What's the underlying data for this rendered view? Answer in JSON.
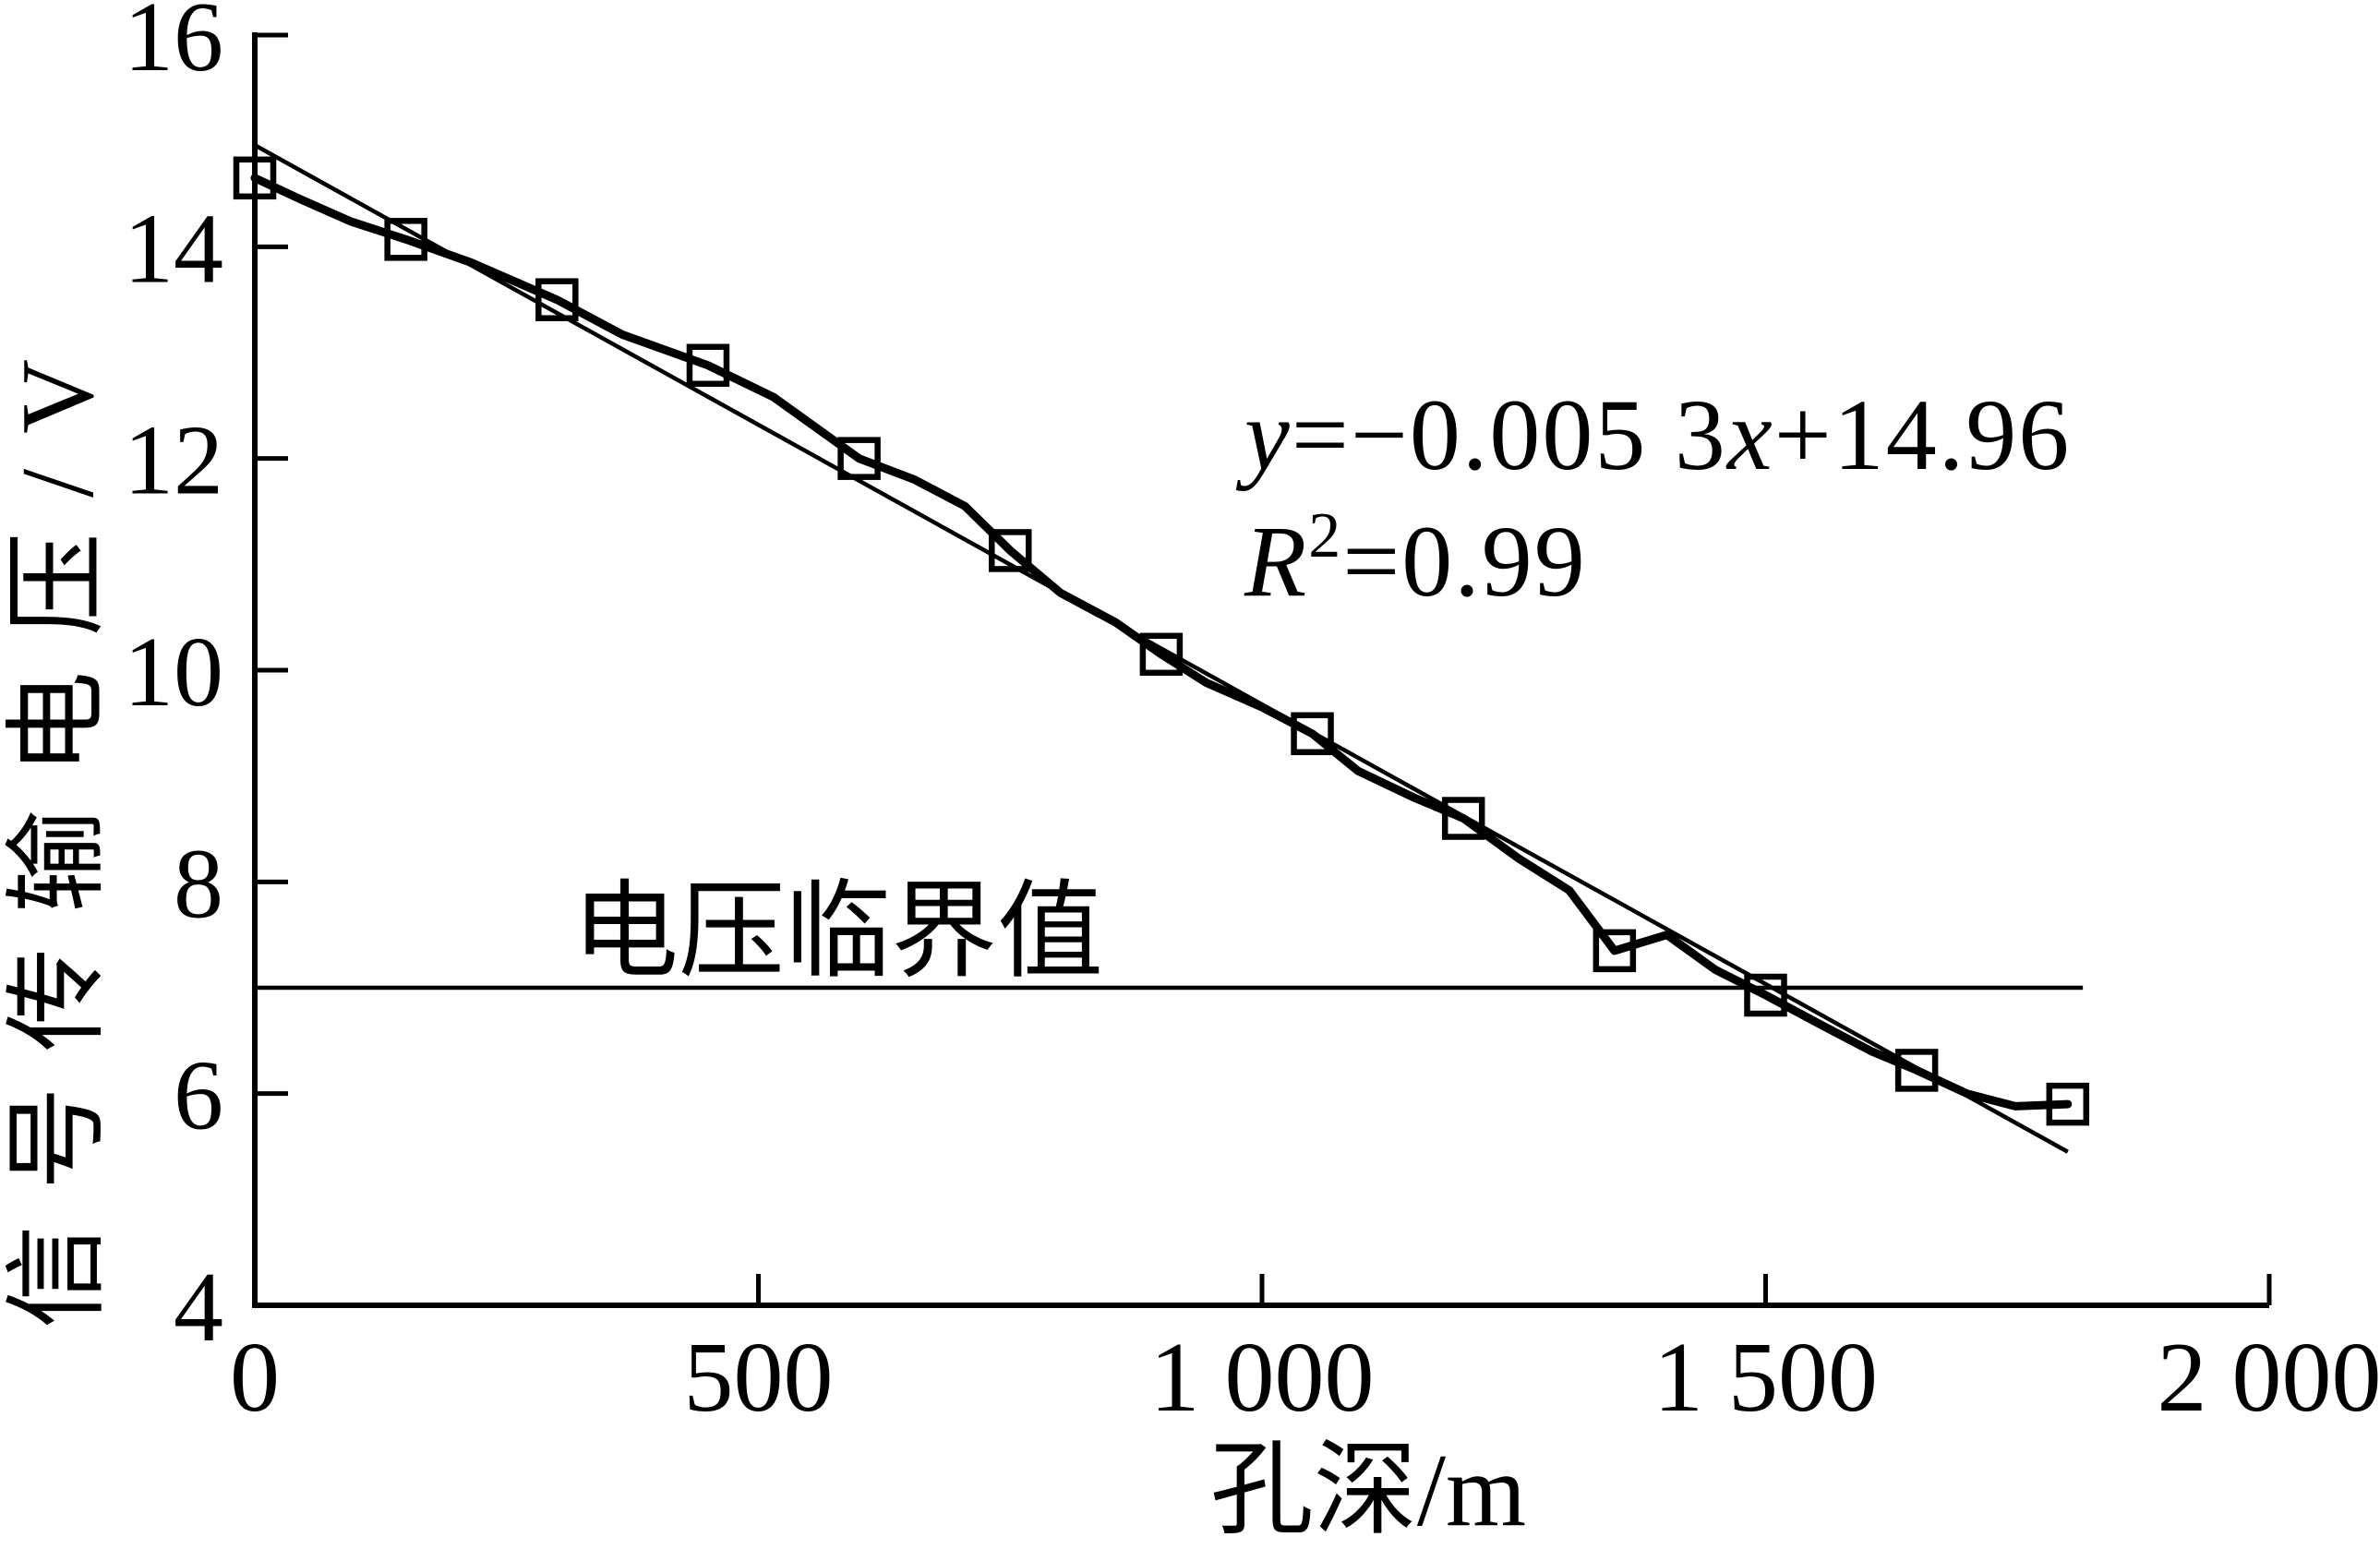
{
  "figure": {
    "background": "#ffffff",
    "ink": "#000000"
  },
  "chart_data": {
    "type": "line",
    "title": "",
    "xlabel": "孔深/m",
    "ylabel": "信号传输电压/V",
    "xlim": [
      0,
      2000
    ],
    "ylim": [
      4,
      16
    ],
    "grid": false,
    "legend": "none",
    "x_ticks": {
      "values": [
        0,
        500,
        1000,
        1500,
        2000
      ],
      "labels": [
        "0",
        "500",
        "1 000",
        "1 500",
        "2 000"
      ]
    },
    "y_ticks": {
      "values": [
        16,
        14,
        12,
        10,
        8,
        6,
        4
      ],
      "labels": [
        "16",
        "14",
        "12",
        "10",
        "8",
        "6",
        "4"
      ]
    },
    "series": [
      {
        "name": "measured_signal_voltage",
        "type": "line",
        "marker": "open-square",
        "x": [
          0,
          150,
          300,
          450,
          600,
          750,
          900,
          1050,
          1200,
          1350,
          1500,
          1650,
          1800
        ],
        "y": [
          14.65,
          14.07,
          13.5,
          12.88,
          12.0,
          11.13,
          10.15,
          9.4,
          8.6,
          7.35,
          6.93,
          6.22,
          5.9
        ],
        "render_path": [
          [
            0,
            14.65
          ],
          [
            45,
            14.45
          ],
          [
            95,
            14.24
          ],
          [
            150,
            14.07
          ],
          [
            215,
            13.85
          ],
          [
            300,
            13.5
          ],
          [
            365,
            13.17
          ],
          [
            450,
            12.88
          ],
          [
            515,
            12.58
          ],
          [
            600,
            12.0
          ],
          [
            655,
            11.8
          ],
          [
            705,
            11.55
          ],
          [
            750,
            11.13
          ],
          [
            800,
            10.73
          ],
          [
            855,
            10.45
          ],
          [
            900,
            10.15
          ],
          [
            945,
            9.88
          ],
          [
            1000,
            9.65
          ],
          [
            1050,
            9.4
          ],
          [
            1095,
            9.05
          ],
          [
            1150,
            8.8
          ],
          [
            1200,
            8.6
          ],
          [
            1255,
            8.22
          ],
          [
            1305,
            7.92
          ],
          [
            1350,
            7.35
          ],
          [
            1402,
            7.5
          ],
          [
            1450,
            7.17
          ],
          [
            1500,
            6.93
          ],
          [
            1555,
            6.65
          ],
          [
            1605,
            6.4
          ],
          [
            1650,
            6.22
          ],
          [
            1700,
            6.0
          ],
          [
            1748,
            5.88
          ],
          [
            1800,
            5.9
          ]
        ]
      },
      {
        "name": "linear_fit_line",
        "type": "straight-line",
        "from": [
          0,
          14.96
        ],
        "to": [
          1800,
          5.45
        ]
      },
      {
        "name": "critical_voltage_line",
        "type": "horizontal-line",
        "value": 7.0,
        "x_span": [
          0,
          1815
        ]
      }
    ],
    "annotations": {
      "equation": {
        "lhs": "y",
        "mid": "=−0.005 3",
        "variable": "x",
        "rhs": "+14.96"
      },
      "r_squared": {
        "base": "R",
        "superscript": "2",
        "rest": "=0.99"
      },
      "critical_label": "电压临界值"
    }
  }
}
